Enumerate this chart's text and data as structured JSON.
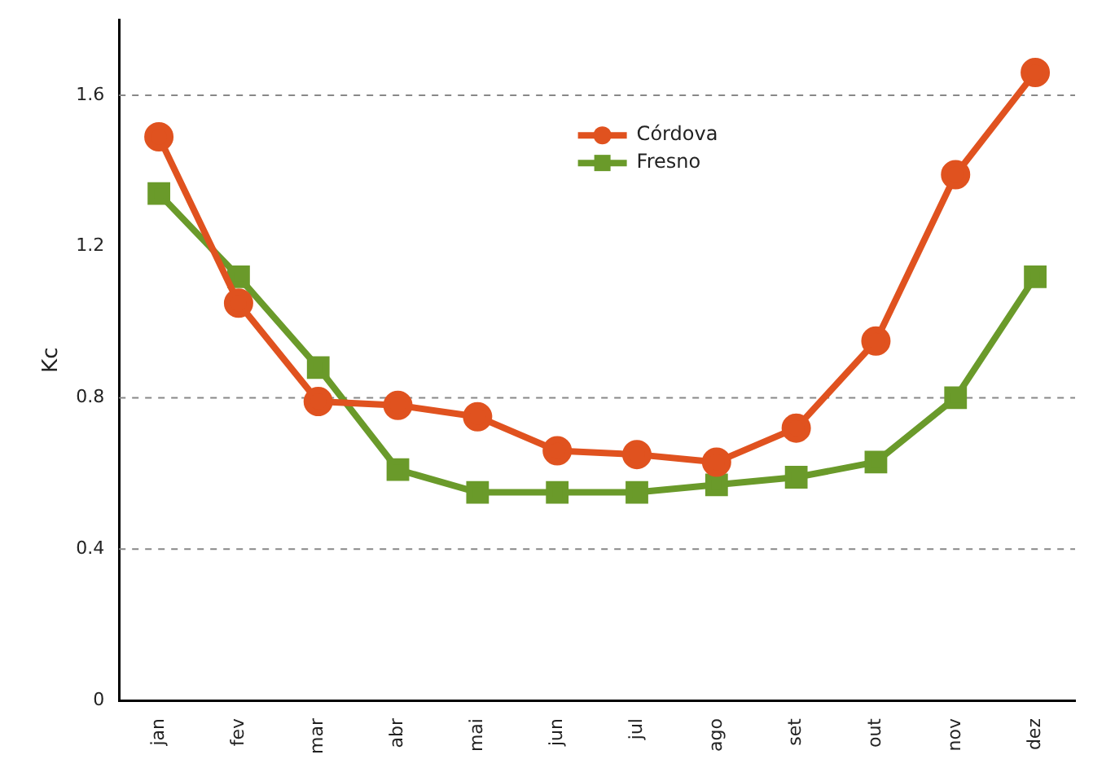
{
  "chart_data": {
    "type": "line",
    "ylabel": "Kc",
    "categories": [
      "jan",
      "fev",
      "mar",
      "abr",
      "mai",
      "jun",
      "jul",
      "ago",
      "set",
      "out",
      "nov",
      "dez"
    ],
    "series": [
      {
        "name": "Córdova",
        "color": "#e0521f",
        "values": [
          1.49,
          1.05,
          0.79,
          0.78,
          0.75,
          0.66,
          0.65,
          0.63,
          0.72,
          0.95,
          1.39,
          1.66
        ],
        "marker": "circle"
      },
      {
        "name": "Fresno",
        "color": "#6a9a2a",
        "values": [
          1.34,
          1.12,
          0.88,
          0.61,
          0.55,
          0.55,
          0.55,
          0.57,
          0.59,
          0.63,
          0.8,
          1.12
        ],
        "marker": "square"
      }
    ],
    "ylim": [
      0,
      1.8
    ],
    "yticks": [
      0,
      0.4,
      0.8,
      1.2,
      1.6
    ],
    "grid": false,
    "legend": "top",
    "ref_lines": [
      {
        "axis": "y",
        "value": 0.4,
        "color": "#888888",
        "line_style": "dashed"
      },
      {
        "axis": "y",
        "value": 0.8,
        "color": "#888888",
        "line_style": "dashed"
      },
      {
        "axis": "y",
        "value": 1.6,
        "color": "#888888",
        "line_style": "dashed"
      }
    ]
  }
}
